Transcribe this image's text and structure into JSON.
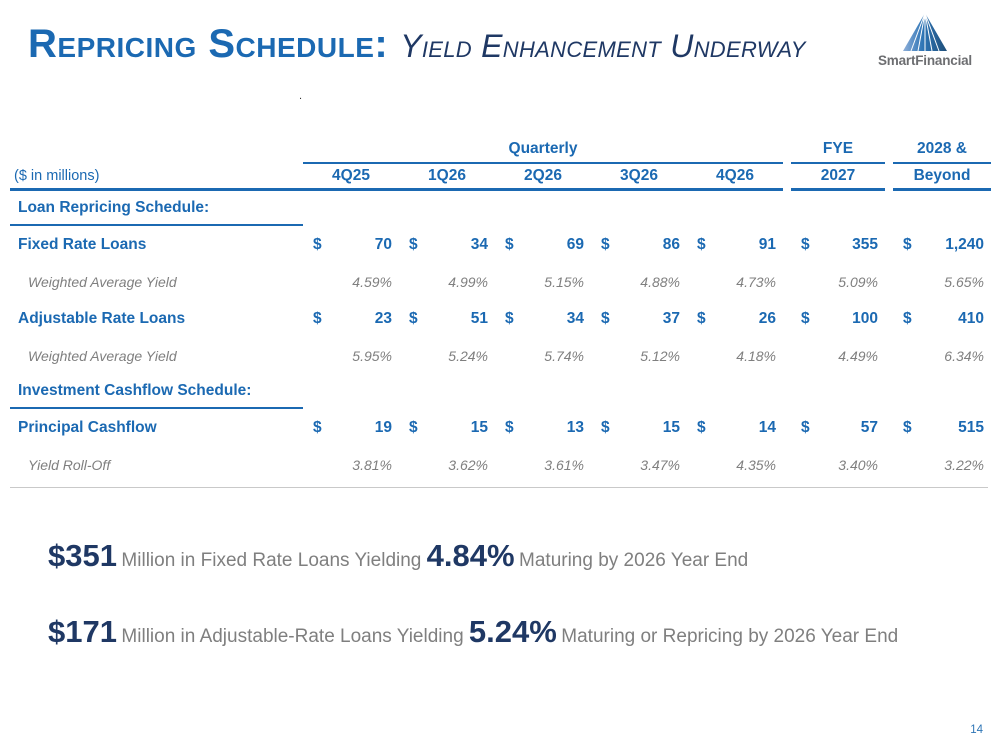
{
  "slide": {
    "title": "Repricing Schedule:",
    "subtitle": "Yield Enhancement Underway",
    "logo_text": "SmartFinancial",
    "stray_dot": ".",
    "page_number": "14"
  },
  "table": {
    "units_label": "($ in millions)",
    "group_quarterly": "Quarterly",
    "group_fye": "FYE",
    "group_beyond": "2028 &",
    "quarter_columns": [
      "4Q25",
      "1Q26",
      "2Q26",
      "3Q26",
      "4Q26"
    ],
    "fye_column": "2027",
    "beyond_column": "Beyond",
    "currency_symbol": "$",
    "sections": [
      {
        "heading": "Loan Repricing Schedule:",
        "rows": [
          {
            "label": "Fixed Rate Loans",
            "type": "money",
            "values": [
              "70",
              "34",
              "69",
              "86",
              "91",
              "355",
              "1,240"
            ]
          },
          {
            "label": "Weighted Average Yield",
            "type": "yield",
            "values": [
              "4.59%",
              "4.99%",
              "5.15%",
              "4.88%",
              "4.73%",
              "5.09%",
              "5.65%"
            ]
          },
          {
            "label": "Adjustable Rate Loans",
            "type": "money",
            "values": [
              "23",
              "51",
              "34",
              "37",
              "26",
              "100",
              "410"
            ]
          },
          {
            "label": "Weighted Average Yield",
            "type": "yield",
            "values": [
              "5.95%",
              "5.24%",
              "5.74%",
              "5.12%",
              "4.18%",
              "4.49%",
              "6.34%"
            ]
          }
        ]
      },
      {
        "heading": "Investment Cashflow Schedule:",
        "rows": [
          {
            "label": "Principal Cashflow",
            "type": "money",
            "values": [
              "19",
              "15",
              "13",
              "15",
              "14",
              "57",
              "515"
            ]
          },
          {
            "label": "Yield Roll-Off",
            "type": "yield",
            "values": [
              "3.81%",
              "3.62%",
              "3.61%",
              "3.47%",
              "4.35%",
              "3.40%",
              "3.22%"
            ]
          }
        ]
      }
    ]
  },
  "summary": [
    {
      "amount": "$351",
      "text1": " Million in Fixed Rate Loans Yielding ",
      "pct": "4.84%",
      "text2": " Maturing by 2026 Year End"
    },
    {
      "amount": "$171",
      "text1": " Million in Adjustable-Rate Loans Yielding ",
      "pct": "5.24%",
      "text2": " Maturing or Repricing by 2026 Year End"
    }
  ],
  "colors": {
    "accent_blue": "#1B69B2",
    "navy": "#1F3864",
    "text_gray": "#7F7F7F",
    "logo_gray": "#6D6E71",
    "divider_gray": "#C9C9C9"
  }
}
